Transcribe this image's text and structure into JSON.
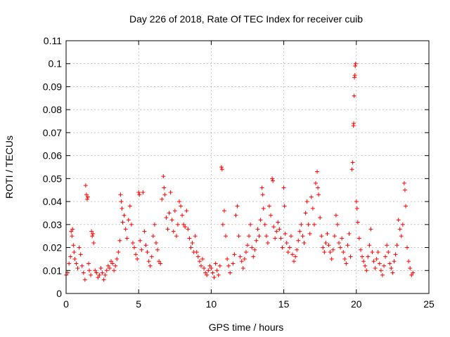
{
  "chart_data": {
    "type": "scatter",
    "title": "Day 226 of 2018, Rate Of TEC Index for receiver cuib",
    "xlabel": "GPS time / hours",
    "ylabel": "ROTI / TECUs",
    "xlim": [
      0,
      25
    ],
    "ylim": [
      0,
      0.11
    ],
    "xticks": [
      0,
      5,
      10,
      15,
      20,
      25
    ],
    "yticks": [
      0,
      0.01,
      0.02,
      0.03,
      0.04,
      0.05,
      0.06,
      0.07,
      0.08,
      0.09,
      0.1,
      0.11
    ],
    "xtick_labels": [
      "0",
      "5",
      "10",
      "15",
      "20",
      "25"
    ],
    "ytick_labels": [
      "0",
      "0.01",
      "0.02",
      "0.03",
      "0.04",
      "0.05",
      "0.06",
      "0.07",
      "0.08",
      "0.09",
      "0.1",
      "0.11"
    ],
    "grid": true,
    "marker": "+",
    "color": "#ff0000",
    "series": [
      {
        "name": "ROTI",
        "points": [
          [
            0.0,
            0.008
          ],
          [
            0.1,
            0.009
          ],
          [
            0.2,
            0.013
          ],
          [
            0.3,
            0.016
          ],
          [
            0.35,
            0.027
          ],
          [
            0.4,
            0.025
          ],
          [
            0.45,
            0.028
          ],
          [
            0.5,
            0.021
          ],
          [
            0.55,
            0.018
          ],
          [
            0.6,
            0.015
          ],
          [
            0.7,
            0.013
          ],
          [
            0.8,
            0.011
          ],
          [
            0.9,
            0.02
          ],
          [
            1.0,
            0.017
          ],
          [
            1.1,
            0.012
          ],
          [
            1.2,
            0.009
          ],
          [
            1.3,
            0.006
          ],
          [
            1.35,
            0.047
          ],
          [
            1.4,
            0.043
          ],
          [
            1.45,
            0.041
          ],
          [
            1.5,
            0.042
          ],
          [
            1.55,
            0.013
          ],
          [
            1.6,
            0.01
          ],
          [
            1.7,
            0.008
          ],
          [
            1.75,
            0.027
          ],
          [
            1.8,
            0.025
          ],
          [
            1.85,
            0.026
          ],
          [
            1.9,
            0.022
          ],
          [
            2.0,
            0.01
          ],
          [
            2.1,
            0.009
          ],
          [
            2.2,
            0.007
          ],
          [
            2.3,
            0.008
          ],
          [
            2.4,
            0.011
          ],
          [
            2.5,
            0.009
          ],
          [
            2.6,
            0.006
          ],
          [
            2.7,
            0.008
          ],
          [
            2.8,
            0.01
          ],
          [
            2.9,
            0.012
          ],
          [
            3.0,
            0.011
          ],
          [
            3.1,
            0.014
          ],
          [
            3.2,
            0.013
          ],
          [
            3.3,
            0.01
          ],
          [
            3.4,
            0.012
          ],
          [
            3.5,
            0.015
          ],
          [
            3.6,
            0.018
          ],
          [
            3.7,
            0.023
          ],
          [
            3.75,
            0.043
          ],
          [
            3.8,
            0.04
          ],
          [
            3.85,
            0.037
          ],
          [
            3.9,
            0.031
          ],
          [
            4.0,
            0.034
          ],
          [
            4.1,
            0.028
          ],
          [
            4.2,
            0.024
          ],
          [
            4.3,
            0.032
          ],
          [
            4.4,
            0.038
          ],
          [
            4.5,
            0.03
          ],
          [
            4.6,
            0.022
          ],
          [
            4.7,
            0.02
          ],
          [
            4.8,
            0.017
          ],
          [
            4.9,
            0.015
          ],
          [
            5.0,
            0.044
          ],
          [
            5.05,
            0.043
          ],
          [
            5.1,
            0.023
          ],
          [
            5.2,
            0.019
          ],
          [
            5.3,
            0.044
          ],
          [
            5.4,
            0.027
          ],
          [
            5.5,
            0.021
          ],
          [
            5.6,
            0.018
          ],
          [
            5.7,
            0.014
          ],
          [
            5.8,
            0.012
          ],
          [
            5.9,
            0.016
          ],
          [
            6.0,
            0.025
          ],
          [
            6.1,
            0.03
          ],
          [
            6.2,
            0.022
          ],
          [
            6.3,
            0.019
          ],
          [
            6.4,
            0.014
          ],
          [
            6.5,
            0.013
          ],
          [
            6.6,
            0.041
          ],
          [
            6.7,
            0.051
          ],
          [
            6.75,
            0.046
          ],
          [
            6.8,
            0.043
          ],
          [
            6.9,
            0.033
          ],
          [
            7.0,
            0.028
          ],
          [
            7.1,
            0.035
          ],
          [
            7.2,
            0.044
          ],
          [
            7.3,
            0.032
          ],
          [
            7.4,
            0.027
          ],
          [
            7.5,
            0.036
          ],
          [
            7.6,
            0.025
          ],
          [
            7.7,
            0.03
          ],
          [
            7.8,
            0.04
          ],
          [
            7.9,
            0.038
          ],
          [
            8.0,
            0.034
          ],
          [
            8.1,
            0.03
          ],
          [
            8.2,
            0.029
          ],
          [
            8.3,
            0.036
          ],
          [
            8.4,
            0.028
          ],
          [
            8.5,
            0.024
          ],
          [
            8.6,
            0.02
          ],
          [
            8.7,
            0.022
          ],
          [
            8.8,
            0.018
          ],
          [
            8.9,
            0.025
          ],
          [
            9.0,
            0.018
          ],
          [
            9.1,
            0.016
          ],
          [
            9.2,
            0.014
          ],
          [
            9.3,
            0.012
          ],
          [
            9.4,
            0.015
          ],
          [
            9.5,
            0.011
          ],
          [
            9.6,
            0.009
          ],
          [
            9.7,
            0.008
          ],
          [
            9.8,
            0.01
          ],
          [
            9.9,
            0.012
          ],
          [
            10.0,
            0.011
          ],
          [
            10.1,
            0.009
          ],
          [
            10.2,
            0.007
          ],
          [
            10.3,
            0.013
          ],
          [
            10.4,
            0.01
          ],
          [
            10.5,
            0.008
          ],
          [
            10.6,
            0.012
          ],
          [
            10.7,
            0.055
          ],
          [
            10.75,
            0.054
          ],
          [
            10.8,
            0.03
          ],
          [
            10.9,
            0.036
          ],
          [
            11.0,
            0.025
          ],
          [
            11.1,
            0.015
          ],
          [
            11.2,
            0.012
          ],
          [
            11.3,
            0.009
          ],
          [
            11.5,
            0.013
          ],
          [
            11.6,
            0.017
          ],
          [
            11.7,
            0.034
          ],
          [
            11.8,
            0.038
          ],
          [
            11.9,
            0.025
          ],
          [
            12.0,
            0.016
          ],
          [
            12.1,
            0.014
          ],
          [
            12.2,
            0.011
          ],
          [
            12.3,
            0.015
          ],
          [
            12.4,
            0.018
          ],
          [
            12.5,
            0.021
          ],
          [
            12.6,
            0.025
          ],
          [
            12.7,
            0.03
          ],
          [
            12.8,
            0.02
          ],
          [
            12.9,
            0.016
          ],
          [
            13.0,
            0.019
          ],
          [
            13.1,
            0.023
          ],
          [
            13.2,
            0.028
          ],
          [
            13.3,
            0.025
          ],
          [
            13.4,
            0.032
          ],
          [
            13.5,
            0.046
          ],
          [
            13.55,
            0.043
          ],
          [
            13.6,
            0.037
          ],
          [
            13.7,
            0.03
          ],
          [
            13.8,
            0.025
          ],
          [
            13.9,
            0.022
          ],
          [
            14.0,
            0.038
          ],
          [
            14.1,
            0.034
          ],
          [
            14.2,
            0.05
          ],
          [
            14.25,
            0.049
          ],
          [
            14.3,
            0.029
          ],
          [
            14.4,
            0.024
          ],
          [
            14.5,
            0.027
          ],
          [
            14.6,
            0.031
          ],
          [
            14.7,
            0.028
          ],
          [
            14.8,
            0.024
          ],
          [
            14.9,
            0.02
          ],
          [
            15.0,
            0.046
          ],
          [
            15.05,
            0.038
          ],
          [
            15.1,
            0.026
          ],
          [
            15.2,
            0.022
          ],
          [
            15.3,
            0.018
          ],
          [
            15.4,
            0.02
          ],
          [
            15.5,
            0.025
          ],
          [
            15.6,
            0.017
          ],
          [
            15.7,
            0.014
          ],
          [
            15.8,
            0.016
          ],
          [
            15.9,
            0.019
          ],
          [
            16.0,
            0.023
          ],
          [
            16.1,
            0.027
          ],
          [
            16.2,
            0.03
          ],
          [
            16.3,
            0.025
          ],
          [
            16.4,
            0.022
          ],
          [
            16.5,
            0.035
          ],
          [
            16.6,
            0.04
          ],
          [
            16.7,
            0.03
          ],
          [
            16.8,
            0.026
          ],
          [
            16.9,
            0.042
          ],
          [
            17.0,
            0.037
          ],
          [
            17.1,
            0.03
          ],
          [
            17.2,
            0.048
          ],
          [
            17.3,
            0.053
          ],
          [
            17.35,
            0.046
          ],
          [
            17.4,
            0.043
          ],
          [
            17.5,
            0.033
          ],
          [
            17.6,
            0.025
          ],
          [
            17.7,
            0.02
          ],
          [
            17.8,
            0.018
          ],
          [
            17.9,
            0.022
          ],
          [
            18.0,
            0.026
          ],
          [
            18.1,
            0.021
          ],
          [
            18.2,
            0.018
          ],
          [
            18.3,
            0.015
          ],
          [
            18.4,
            0.019
          ],
          [
            18.5,
            0.025
          ],
          [
            18.6,
            0.034
          ],
          [
            18.7,
            0.03
          ],
          [
            18.8,
            0.022
          ],
          [
            18.9,
            0.02
          ],
          [
            19.0,
            0.024
          ],
          [
            19.1,
            0.018
          ],
          [
            19.2,
            0.015
          ],
          [
            19.3,
            0.013
          ],
          [
            19.4,
            0.021
          ],
          [
            19.5,
            0.026
          ],
          [
            19.6,
            0.016
          ],
          [
            19.7,
            0.054
          ],
          [
            19.75,
            0.057
          ],
          [
            19.8,
            0.073
          ],
          [
            19.82,
            0.074
          ],
          [
            19.85,
            0.086
          ],
          [
            19.87,
            0.094
          ],
          [
            19.9,
            0.095
          ],
          [
            19.92,
            0.099
          ],
          [
            19.95,
            0.1
          ],
          [
            20.0,
            0.04
          ],
          [
            20.05,
            0.037
          ],
          [
            20.1,
            0.031
          ],
          [
            20.2,
            0.024
          ],
          [
            20.3,
            0.019
          ],
          [
            20.4,
            0.016
          ],
          [
            20.5,
            0.014
          ],
          [
            20.6,
            0.012
          ],
          [
            20.7,
            0.01
          ],
          [
            20.8,
            0.016
          ],
          [
            20.9,
            0.021
          ],
          [
            21.0,
            0.028
          ],
          [
            21.1,
            0.018
          ],
          [
            21.2,
            0.014
          ],
          [
            21.3,
            0.011
          ],
          [
            21.4,
            0.015
          ],
          [
            21.5,
            0.018
          ],
          [
            21.6,
            0.013
          ],
          [
            21.7,
            0.01
          ],
          [
            21.8,
            0.008
          ],
          [
            21.9,
            0.012
          ],
          [
            22.0,
            0.016
          ],
          [
            22.1,
            0.021
          ],
          [
            22.2,
            0.018
          ],
          [
            22.3,
            0.013
          ],
          [
            22.4,
            0.011
          ],
          [
            22.5,
            0.009
          ],
          [
            22.6,
            0.014
          ],
          [
            22.7,
            0.017
          ],
          [
            22.8,
            0.021
          ],
          [
            22.9,
            0.032
          ],
          [
            23.0,
            0.028
          ],
          [
            23.1,
            0.025
          ],
          [
            23.2,
            0.03
          ],
          [
            23.3,
            0.048
          ],
          [
            23.35,
            0.045
          ],
          [
            23.4,
            0.038
          ],
          [
            23.5,
            0.02
          ],
          [
            23.6,
            0.014
          ],
          [
            23.7,
            0.011
          ],
          [
            23.8,
            0.008
          ],
          [
            23.9,
            0.009
          ]
        ]
      }
    ]
  }
}
